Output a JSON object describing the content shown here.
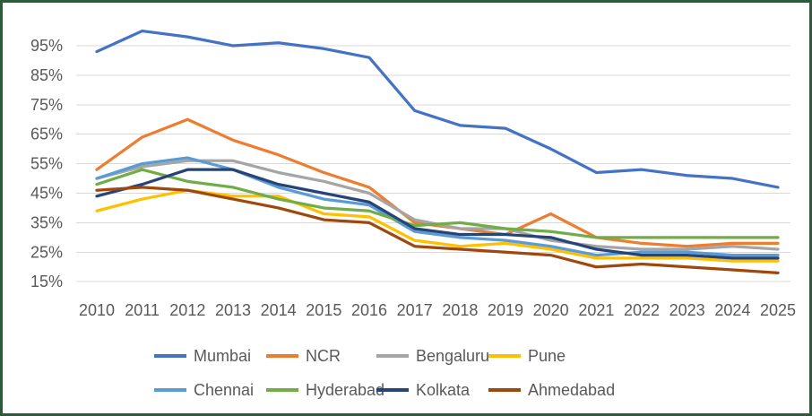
{
  "chart_data": {
    "type": "line",
    "title": "",
    "xlabel": "",
    "ylabel": "",
    "x": [
      2010,
      2011,
      2012,
      2013,
      2014,
      2015,
      2016,
      2017,
      2018,
      2019,
      2020,
      2021,
      2022,
      2023,
      2024,
      2025
    ],
    "series": [
      {
        "name": "Mumbai",
        "color": "#4472C4",
        "values": [
          93,
          100,
          98,
          95,
          96,
          94,
          91,
          73,
          68,
          67,
          60,
          52,
          53,
          51,
          50,
          47
        ]
      },
      {
        "name": "NCR",
        "color": "#ED7D31",
        "values": [
          53,
          64,
          70,
          63,
          58,
          52,
          47,
          35,
          33,
          31,
          38,
          30,
          28,
          27,
          28,
          28
        ]
      },
      {
        "name": "Bengaluru",
        "color": "#A5A5A5",
        "values": [
          50,
          54,
          56,
          56,
          52,
          49,
          45,
          36,
          33,
          33,
          29,
          27,
          26,
          26,
          27,
          26
        ]
      },
      {
        "name": "Pune",
        "color": "#FFC000",
        "values": [
          39,
          43,
          46,
          44,
          44,
          38,
          37,
          29,
          27,
          28,
          26,
          23,
          23,
          23,
          22,
          22
        ]
      },
      {
        "name": "Chennai",
        "color": "#5B9BD5",
        "values": [
          50,
          55,
          57,
          53,
          47,
          43,
          41,
          32,
          30,
          29,
          27,
          24,
          25,
          25,
          24,
          24
        ]
      },
      {
        "name": "Hyderabad",
        "color": "#70AD47",
        "values": [
          48,
          53,
          49,
          47,
          43,
          40,
          39,
          34,
          35,
          33,
          32,
          30,
          30,
          30,
          30,
          30
        ]
      },
      {
        "name": "Kolkata",
        "color": "#264478",
        "values": [
          44,
          48,
          53,
          53,
          48,
          45,
          42,
          33,
          31,
          31,
          30,
          26,
          24,
          24,
          23,
          23
        ]
      },
      {
        "name": "Ahmedabad",
        "color": "#9E480E",
        "values": [
          46,
          47,
          46,
          43,
          40,
          36,
          35,
          27,
          26,
          25,
          24,
          20,
          21,
          20,
          19,
          18
        ]
      }
    ],
    "ylim": [
      15,
      101
    ],
    "grid": true,
    "legend_position": "bottom"
  },
  "axes": {
    "y_ticks": [
      95,
      85,
      75,
      65,
      55,
      45,
      35,
      25,
      15
    ],
    "y_tick_labels": [
      "95%",
      "85%",
      "75%",
      "65%",
      "55%",
      "45%",
      "35%",
      "25%",
      "15%"
    ],
    "x_tick_labels": [
      "2010",
      "2011",
      "2012",
      "2013",
      "2014",
      "2015",
      "2016",
      "2017",
      "2018",
      "2019",
      "2020",
      "2021",
      "2022",
      "2023",
      "2024",
      "2025"
    ]
  },
  "legend": {
    "items": [
      "Mumbai",
      "NCR",
      "Bengaluru",
      "Pune",
      "Chennai",
      "Hyderabad",
      "Kolkata",
      "Ahmedabad"
    ]
  },
  "colors": {
    "border": "#2E5A3B",
    "background": "#FFFFFF",
    "gridline": "#D9D9D9",
    "axis_text": "#595959",
    "legend_text": "#595959"
  }
}
